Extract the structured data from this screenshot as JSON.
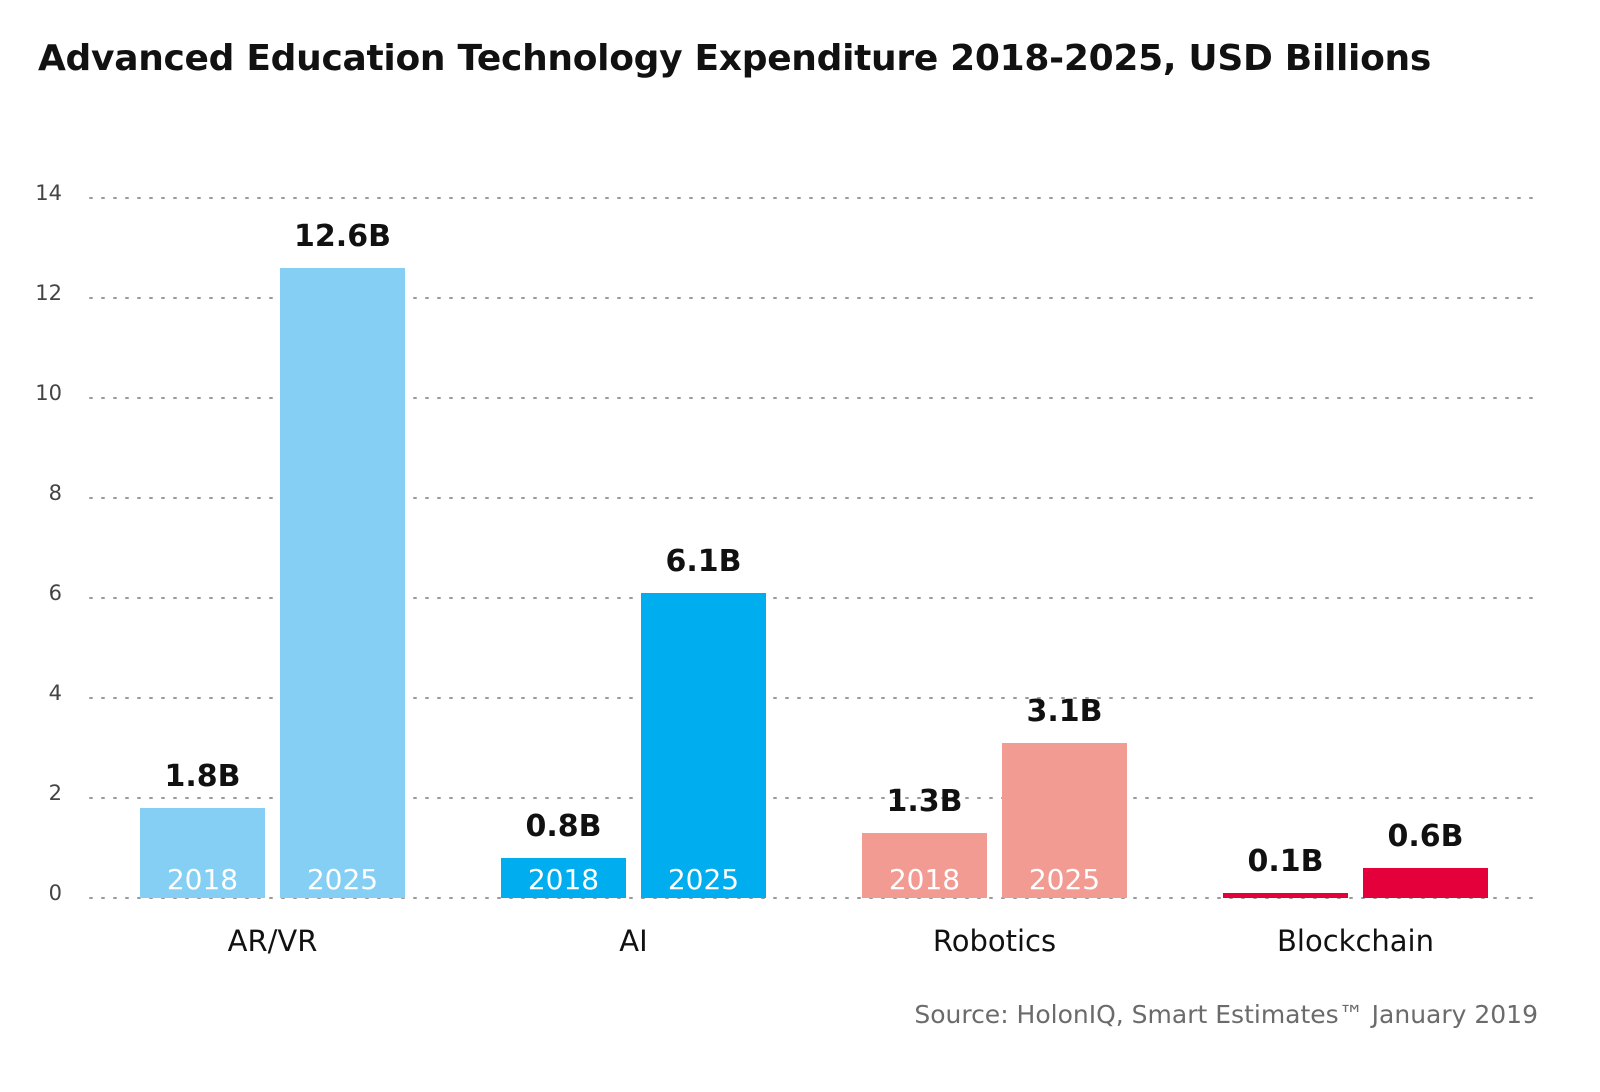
{
  "chart_data": {
    "type": "bar",
    "title": "Advanced Education Technology Expenditure 2018-2025, USD Billions",
    "categories": [
      "AR/VR",
      "AI",
      "Robotics",
      "Blockchain"
    ],
    "series": [
      {
        "name": "2018",
        "values": [
          1.8,
          0.8,
          1.3,
          0.1
        ],
        "labels": [
          "1.8B",
          "0.8B",
          "1.3B",
          "0.1B"
        ],
        "colors": [
          "#85CFF4",
          "#00AEEF",
          "#F29B92",
          "#E4003B"
        ]
      },
      {
        "name": "2025",
        "values": [
          12.6,
          6.1,
          3.1,
          0.6
        ],
        "labels": [
          "12.6B",
          "6.1B",
          "3.1B",
          "0.6B"
        ],
        "colors": [
          "#85CFF4",
          "#00AEEF",
          "#F29B92",
          "#E4003B"
        ]
      }
    ],
    "in_bar_year_labels": [
      true,
      true,
      true,
      false
    ],
    "ylim": [
      0,
      14
    ],
    "yticks": [
      0,
      2,
      4,
      6,
      8,
      10,
      12,
      14
    ],
    "grid": true,
    "grid_style": "dotted",
    "legend": "none",
    "source": "Source: HolonIQ, Smart Estimates™ January 2019"
  }
}
